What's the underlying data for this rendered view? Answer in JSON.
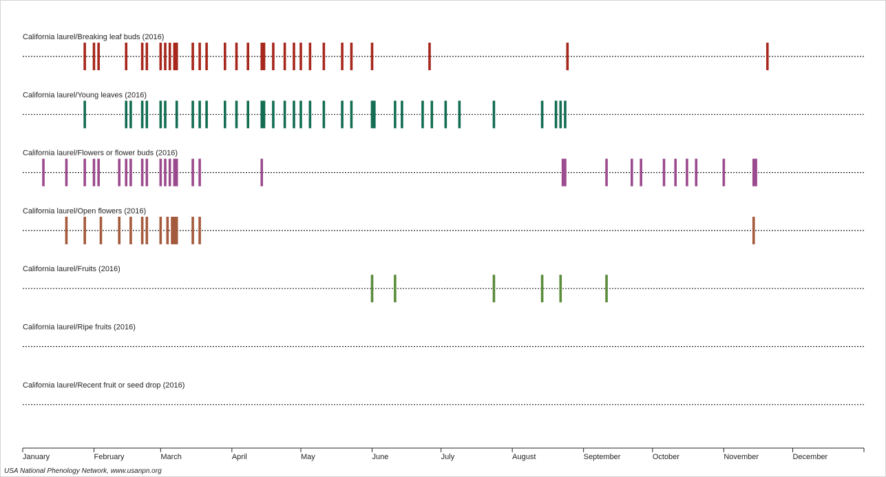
{
  "chart_data": {
    "type": "scatter",
    "subtype": "phenology-timeline",
    "year": 2016,
    "x_range": [
      "2016-01-01",
      "2016-12-31"
    ],
    "x_ticks": [
      "January",
      "February",
      "March",
      "April",
      "May",
      "June",
      "July",
      "August",
      "September",
      "October",
      "November",
      "December"
    ],
    "series": [
      {
        "name": "California laurel/Breaking leaf buds (2016)",
        "color": "#a6271c",
        "dates": [
          "2016-01-28",
          "2016-02-01",
          "2016-02-03",
          "2016-02-15",
          "2016-02-22",
          "2016-02-24",
          "2016-03-01",
          "2016-03-03",
          "2016-03-05",
          "2016-03-07",
          "2016-03-08",
          "2016-03-15",
          "2016-03-18",
          "2016-03-21",
          "2016-03-29",
          "2016-04-03",
          "2016-04-08",
          "2016-04-14",
          "2016-04-15",
          "2016-04-19",
          "2016-04-24",
          "2016-04-28",
          "2016-05-01",
          "2016-05-05",
          "2016-05-11",
          "2016-05-19",
          "2016-05-23",
          "2016-06-01",
          "2016-06-26",
          "2016-08-25",
          "2016-11-20"
        ]
      },
      {
        "name": "California laurel/Young leaves (2016)",
        "color": "#126d52",
        "dates": [
          "2016-01-28",
          "2016-02-15",
          "2016-02-17",
          "2016-02-22",
          "2016-02-24",
          "2016-03-01",
          "2016-03-03",
          "2016-03-08",
          "2016-03-15",
          "2016-03-18",
          "2016-03-21",
          "2016-03-29",
          "2016-04-03",
          "2016-04-08",
          "2016-04-14",
          "2016-04-15",
          "2016-04-19",
          "2016-04-24",
          "2016-04-28",
          "2016-05-01",
          "2016-05-05",
          "2016-05-11",
          "2016-05-19",
          "2016-05-23",
          "2016-06-01",
          "2016-06-02",
          "2016-06-11",
          "2016-06-14",
          "2016-06-23",
          "2016-06-27",
          "2016-07-03",
          "2016-07-09",
          "2016-07-24",
          "2016-08-14",
          "2016-08-20",
          "2016-08-22",
          "2016-08-24"
        ]
      },
      {
        "name": "California laurel/Flowers or flower buds (2016)",
        "color": "#9b4a8d",
        "dates": [
          "2016-01-10",
          "2016-01-20",
          "2016-01-28",
          "2016-02-01",
          "2016-02-03",
          "2016-02-12",
          "2016-02-15",
          "2016-02-17",
          "2016-02-22",
          "2016-02-24",
          "2016-03-01",
          "2016-03-03",
          "2016-03-05",
          "2016-03-07",
          "2016-03-08",
          "2016-03-15",
          "2016-03-18",
          "2016-04-14",
          "2016-08-23",
          "2016-08-24",
          "2016-09-11",
          "2016-09-22",
          "2016-09-26",
          "2016-10-06",
          "2016-10-11",
          "2016-10-16",
          "2016-10-20",
          "2016-11-01",
          "2016-11-14",
          "2016-11-15"
        ]
      },
      {
        "name": "California laurel/Open flowers (2016)",
        "color": "#a45a3c",
        "dates": [
          "2016-01-20",
          "2016-01-28",
          "2016-02-04",
          "2016-02-12",
          "2016-02-17",
          "2016-02-22",
          "2016-02-24",
          "2016-03-01",
          "2016-03-04",
          "2016-03-06",
          "2016-03-07",
          "2016-03-08",
          "2016-03-15",
          "2016-03-18",
          "2016-11-14"
        ]
      },
      {
        "name": "California laurel/Fruits (2016)",
        "color": "#5a8c3a",
        "dates": [
          "2016-06-01",
          "2016-06-11",
          "2016-07-24",
          "2016-08-14",
          "2016-08-22",
          "2016-09-11"
        ]
      },
      {
        "name": "California laurel/Ripe fruits (2016)",
        "color": "#5a8c3a",
        "dates": []
      },
      {
        "name": "California laurel/Recent fruit or seed drop (2016)",
        "color": "#5a8c3a",
        "dates": []
      }
    ]
  },
  "credit": "USA National Phenology Network, www.usanpn.org"
}
